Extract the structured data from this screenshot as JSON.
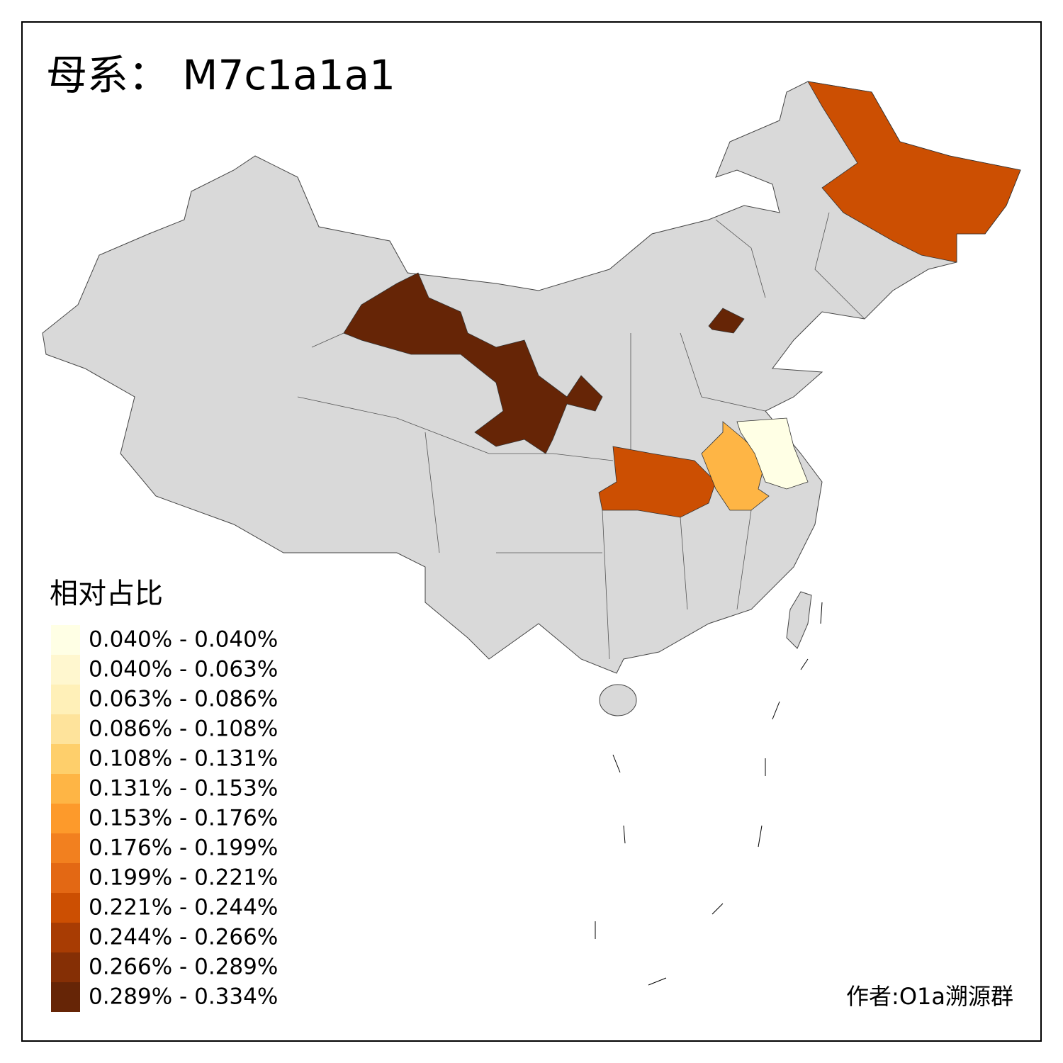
{
  "title": "母系： M7c1a1a1",
  "legend": {
    "title": "相对占比",
    "items": [
      {
        "label": "0.040% - 0.040%",
        "color": "#ffffe5"
      },
      {
        "label": "0.040% - 0.063%",
        "color": "#fff7cf"
      },
      {
        "label": "0.063% - 0.086%",
        "color": "#fff0b8"
      },
      {
        "label": "0.086% - 0.108%",
        "color": "#fee39b"
      },
      {
        "label": "0.108% - 0.131%",
        "color": "#fecf6b"
      },
      {
        "label": "0.131% - 0.153%",
        "color": "#feb545"
      },
      {
        "label": "0.153% - 0.176%",
        "color": "#fd9a2b"
      },
      {
        "label": "0.176% - 0.199%",
        "color": "#f2801f"
      },
      {
        "label": "0.199% - 0.221%",
        "color": "#e36814"
      },
      {
        "label": "0.221% - 0.244%",
        "color": "#cc4f02"
      },
      {
        "label": "0.244% - 0.266%",
        "color": "#a83c03"
      },
      {
        "label": "0.266% - 0.289%",
        "color": "#852f05"
      },
      {
        "label": "0.289% - 0.334%",
        "color": "#662506"
      }
    ]
  },
  "credit": "作者:O1a溯源群"
}
